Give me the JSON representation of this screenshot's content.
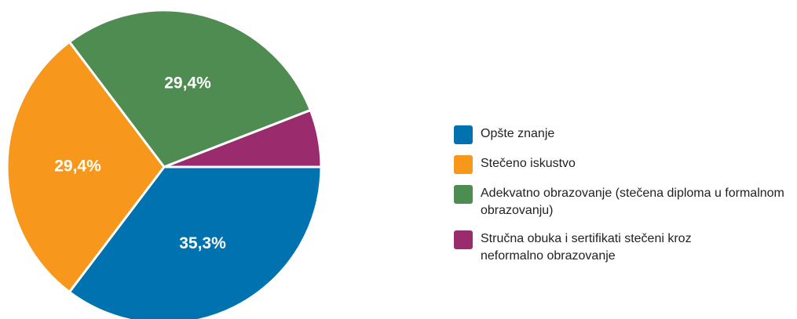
{
  "chart_data": {
    "type": "pie",
    "categories": [
      "Opšte znanje",
      "Stečeno iskustvo",
      "Adekvatno obrazovanje (stečena diploma u formalnom obrazovanju)",
      "Stručna obuka i sertifikati stečeni kroz neformalno obrazovanje"
    ],
    "values": [
      35.3,
      29.4,
      29.4,
      5.9
    ],
    "value_labels": [
      "35,3%",
      "29,4%",
      "29,4%",
      null
    ],
    "colors": [
      "#0072b0",
      "#f7981d",
      "#4e8c52",
      "#9a2b6c"
    ],
    "legend": "right"
  }
}
